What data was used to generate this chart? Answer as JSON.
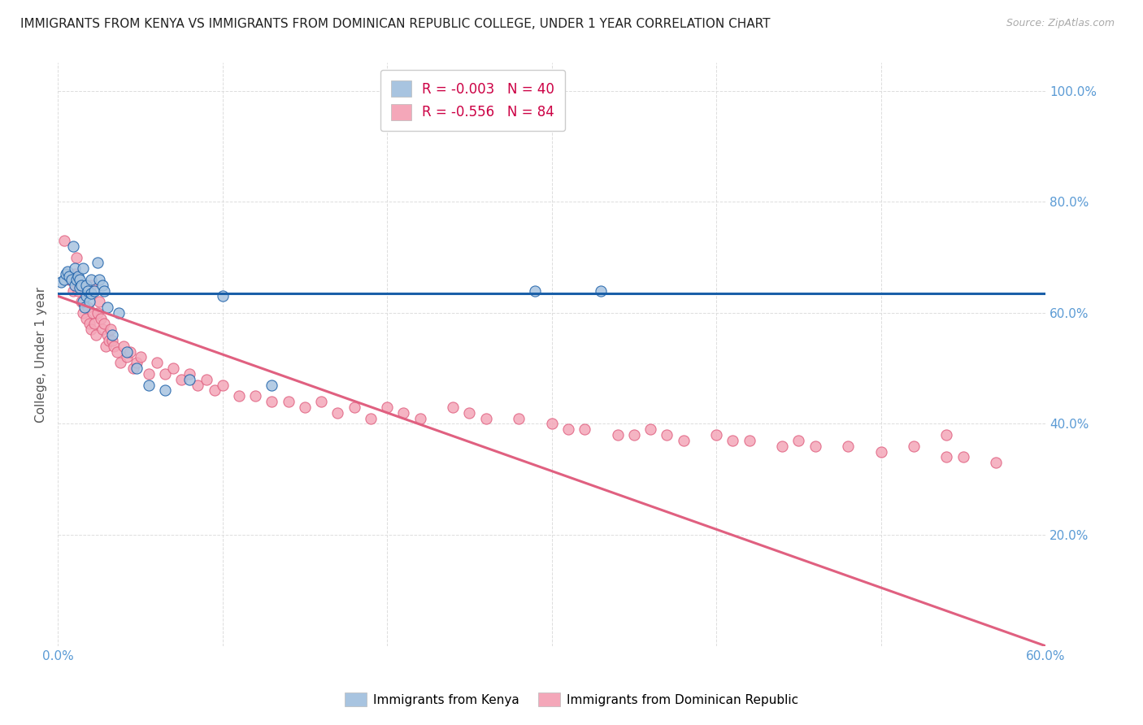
{
  "title": "IMMIGRANTS FROM KENYA VS IMMIGRANTS FROM DOMINICAN REPUBLIC COLLEGE, UNDER 1 YEAR CORRELATION CHART",
  "source": "Source: ZipAtlas.com",
  "ylabel": "College, Under 1 year",
  "x_min": 0.0,
  "x_max": 0.6,
  "y_min": 0.0,
  "y_max": 1.05,
  "color_kenya": "#a8c4e0",
  "color_dr": "#f4a7b9",
  "color_line_kenya": "#1a5fa8",
  "color_line_dr": "#e06080",
  "color_title": "#222222",
  "color_source": "#aaaaaa",
  "color_axis_right": "#5b9bd5",
  "background_color": "#ffffff",
  "grid_color": "#dddddd",
  "legend_text_color": "#cc0044",
  "kenya_x": [
    0.002,
    0.004,
    0.005,
    0.006,
    0.007,
    0.008,
    0.009,
    0.01,
    0.01,
    0.011,
    0.012,
    0.013,
    0.013,
    0.014,
    0.015,
    0.015,
    0.016,
    0.017,
    0.017,
    0.018,
    0.019,
    0.02,
    0.02,
    0.022,
    0.024,
    0.025,
    0.027,
    0.028,
    0.03,
    0.033,
    0.037,
    0.042,
    0.048,
    0.055,
    0.065,
    0.08,
    0.1,
    0.13,
    0.29,
    0.33
  ],
  "kenya_y": [
    0.655,
    0.66,
    0.67,
    0.675,
    0.665,
    0.66,
    0.72,
    0.68,
    0.65,
    0.66,
    0.665,
    0.66,
    0.645,
    0.65,
    0.68,
    0.62,
    0.61,
    0.63,
    0.65,
    0.64,
    0.62,
    0.635,
    0.66,
    0.64,
    0.69,
    0.66,
    0.65,
    0.64,
    0.61,
    0.56,
    0.6,
    0.53,
    0.5,
    0.47,
    0.46,
    0.48,
    0.63,
    0.47,
    0.64,
    0.64
  ],
  "dr_x": [
    0.004,
    0.007,
    0.009,
    0.01,
    0.011,
    0.012,
    0.013,
    0.014,
    0.015,
    0.016,
    0.017,
    0.018,
    0.019,
    0.02,
    0.02,
    0.021,
    0.022,
    0.023,
    0.024,
    0.025,
    0.026,
    0.027,
    0.028,
    0.029,
    0.03,
    0.031,
    0.032,
    0.033,
    0.034,
    0.036,
    0.038,
    0.04,
    0.042,
    0.044,
    0.046,
    0.048,
    0.05,
    0.055,
    0.06,
    0.065,
    0.07,
    0.075,
    0.08,
    0.085,
    0.09,
    0.095,
    0.1,
    0.11,
    0.12,
    0.13,
    0.14,
    0.15,
    0.16,
    0.17,
    0.18,
    0.19,
    0.2,
    0.21,
    0.22,
    0.24,
    0.25,
    0.26,
    0.28,
    0.3,
    0.31,
    0.32,
    0.34,
    0.35,
    0.36,
    0.37,
    0.38,
    0.4,
    0.41,
    0.42,
    0.44,
    0.45,
    0.46,
    0.48,
    0.5,
    0.52,
    0.54,
    0.55,
    0.57,
    0.54
  ],
  "dr_y": [
    0.73,
    0.66,
    0.64,
    0.67,
    0.7,
    0.64,
    0.65,
    0.62,
    0.6,
    0.64,
    0.59,
    0.61,
    0.58,
    0.65,
    0.57,
    0.6,
    0.58,
    0.56,
    0.6,
    0.62,
    0.59,
    0.57,
    0.58,
    0.54,
    0.56,
    0.55,
    0.57,
    0.55,
    0.54,
    0.53,
    0.51,
    0.54,
    0.52,
    0.53,
    0.5,
    0.51,
    0.52,
    0.49,
    0.51,
    0.49,
    0.5,
    0.48,
    0.49,
    0.47,
    0.48,
    0.46,
    0.47,
    0.45,
    0.45,
    0.44,
    0.44,
    0.43,
    0.44,
    0.42,
    0.43,
    0.41,
    0.43,
    0.42,
    0.41,
    0.43,
    0.42,
    0.41,
    0.41,
    0.4,
    0.39,
    0.39,
    0.38,
    0.38,
    0.39,
    0.38,
    0.37,
    0.38,
    0.37,
    0.37,
    0.36,
    0.37,
    0.36,
    0.36,
    0.35,
    0.36,
    0.34,
    0.34,
    0.33,
    0.38
  ]
}
